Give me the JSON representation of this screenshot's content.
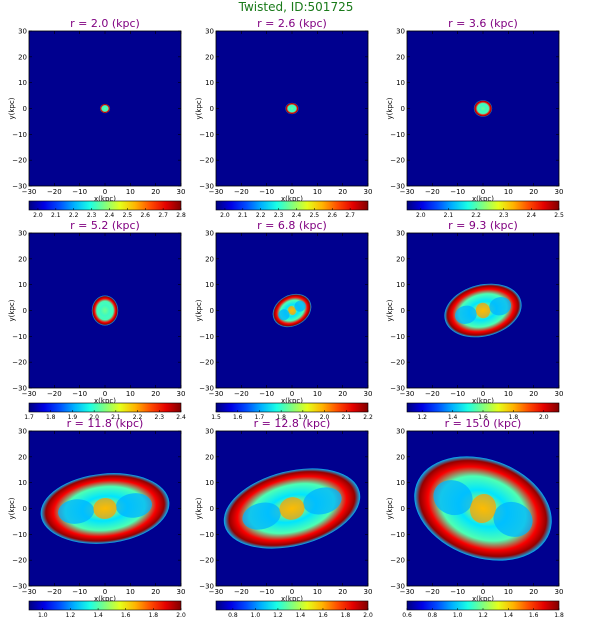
{
  "title": "Twisted, ID:501725",
  "chart_data": {
    "type": "heatmap",
    "xlabel": "x(kpc)",
    "ylabel": "y(kpc)",
    "xlim": [
      -30,
      30
    ],
    "ylim": [
      -30,
      30
    ],
    "xticks": [
      -30,
      -20,
      -10,
      0,
      10,
      20,
      30
    ],
    "yticks": [
      -30,
      -20,
      -10,
      0,
      10,
      20,
      30
    ],
    "colormap": "jet",
    "background_color": "#00008f",
    "title_color": "#800080",
    "panels": [
      {
        "title": "r = 2.0 (kpc)",
        "r": 2.0,
        "ellipse": {
          "a": 2.0,
          "b": 1.8,
          "angle": 0
        },
        "colorbar": {
          "min": 1.95,
          "max": 2.8,
          "ticks": [
            "2.0",
            "2.1",
            "2.2",
            "2.3",
            "2.4",
            "2.5",
            "2.6",
            "2.7",
            "2.8"
          ]
        }
      },
      {
        "title": "r = 2.6 (kpc)",
        "r": 2.6,
        "ellipse": {
          "a": 2.6,
          "b": 2.2,
          "angle": 0
        },
        "colorbar": {
          "min": 1.95,
          "max": 2.8,
          "ticks": [
            "2.0",
            "2.1",
            "2.2",
            "2.3",
            "2.4",
            "2.5",
            "2.6",
            "2.7"
          ]
        }
      },
      {
        "title": "r = 3.6 (kpc)",
        "r": 3.6,
        "ellipse": {
          "a": 3.6,
          "b": 3.2,
          "angle": 0
        },
        "colorbar": {
          "min": 1.95,
          "max": 2.5,
          "ticks": [
            "2.0",
            "2.1",
            "2.2",
            "2.3",
            "2.4",
            "2.5"
          ]
        }
      },
      {
        "title": "r = 5.2 (kpc)",
        "r": 5.2,
        "ellipse": {
          "a": 5.2,
          "b": 5.8,
          "angle": 0
        },
        "colorbar": {
          "min": 1.7,
          "max": 2.4,
          "ticks": [
            "1.7",
            "1.8",
            "1.9",
            "2.0",
            "2.1",
            "2.2",
            "2.3",
            "2.4"
          ]
        }
      },
      {
        "title": "r = 6.8 (kpc)",
        "r": 6.8,
        "ellipse": {
          "a": 8.0,
          "b": 6.0,
          "angle": 28
        },
        "colorbar": {
          "min": 1.5,
          "max": 2.2,
          "ticks": [
            "1.5",
            "1.6",
            "1.7",
            "1.8",
            "1.9",
            "2.0",
            "2.1",
            "2.2"
          ]
        }
      },
      {
        "title": "r = 9.3 (kpc)",
        "r": 9.3,
        "ellipse": {
          "a": 15.5,
          "b": 10.0,
          "angle": 14
        },
        "colorbar": {
          "min": 1.1,
          "max": 2.1,
          "ticks": [
            "1.2",
            "1.4",
            "1.6",
            "1.8",
            "2.0"
          ]
        }
      },
      {
        "title": "r = 11.8 (kpc)",
        "r": 11.8,
        "ellipse": {
          "a": 25.5,
          "b": 13.5,
          "angle": 6
        },
        "colorbar": {
          "min": 0.9,
          "max": 2.0,
          "ticks": [
            "1.0",
            "1.2",
            "1.4",
            "1.6",
            "1.8",
            "2.0"
          ]
        }
      },
      {
        "title": "r = 12.8 (kpc)",
        "r": 12.8,
        "ellipse": {
          "a": 27.5,
          "b": 14.5,
          "angle": 14
        },
        "colorbar": {
          "min": 0.65,
          "max": 2.0,
          "ticks": [
            "0.8",
            "1.0",
            "1.2",
            "1.4",
            "1.6",
            "1.8",
            "2.0"
          ]
        }
      },
      {
        "title": "r = 15.0 (kpc)",
        "r": 15.0,
        "ellipse": {
          "a": 28.0,
          "b": 19.0,
          "angle": -20
        },
        "colorbar": {
          "min": 0.6,
          "max": 1.8,
          "ticks": [
            "0.6",
            "0.8",
            "1.0",
            "1.2",
            "1.4",
            "1.6",
            "1.8"
          ]
        }
      }
    ]
  }
}
